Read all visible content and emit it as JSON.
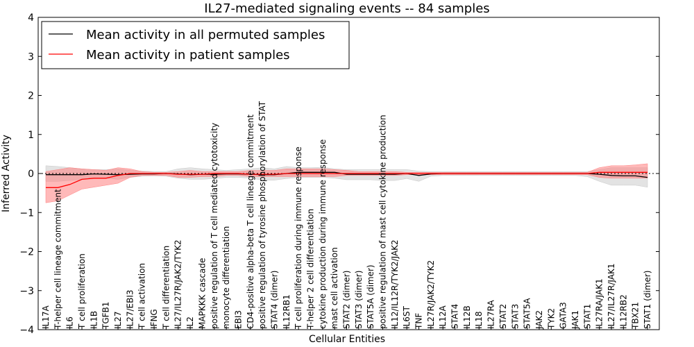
{
  "chart_data": {
    "type": "line",
    "title": "IL27-mediated signaling events -- 84 samples",
    "xlabel": "Cellular Entities",
    "ylabel": "Inferred Activity",
    "ylim": [
      -4,
      4
    ],
    "yticks": [
      -4,
      -3,
      -2,
      -1,
      0,
      1,
      2,
      3,
      4
    ],
    "legend_position": "top-left",
    "categories": [
      "IL17A",
      "T-helper cell lineage commitment",
      "IL6",
      "T cell proliferation",
      "IL1B",
      "TGFB1",
      "IL27",
      "IL27/EBI3",
      "T cell activation",
      "IFNG",
      "T cell differentiation",
      "IL27/IL27R/JAK2/TYK2",
      "IL2",
      "MAPKKK cascade",
      "positive regulation of T cell mediated cytotoxicity",
      "monocyte differentiation",
      "EBI3",
      "CD4-positive alpha-beta T cell lineage commitment",
      "positive regulation of tyrosine phosphorylation of STAT",
      "STAT4 (dimer)",
      "IL12RB1",
      "T cell proliferation during immune response",
      "T-helper 2 cell differentiation",
      "cytokine production during immune response",
      "mast cell activation",
      "STAT2 (dimer)",
      "STAT3 (dimer)",
      "STAT5A (dimer)",
      "positive regulation of mast cell cytokine production",
      "IL12/IL12R/TYK2/JAK2",
      "IL6ST",
      "TNF",
      "IL27R/JAK2/TYK2",
      "IL12A",
      "STAT4",
      "IL12B",
      "IL18",
      "IL27RA",
      "STAT2",
      "STAT3",
      "STAT5A",
      "JAK2",
      "TYK2",
      "GATA3",
      "JAK1",
      "STAT1",
      "IL27RA/JAK1",
      "IL27/IL27R/JAK1",
      "IL12RB2",
      "TBX21",
      "STAT1 (dimer)"
    ],
    "series": [
      {
        "name": "Mean activity in all permuted samples",
        "color": "#000000",
        "band_color": "#c8c8c8",
        "values": [
          -0.03,
          -0.03,
          -0.03,
          -0.03,
          -0.01,
          -0.02,
          -0.03,
          -0.02,
          -0.01,
          -0.01,
          0.0,
          -0.01,
          -0.03,
          -0.02,
          -0.02,
          -0.01,
          -0.01,
          -0.02,
          -0.03,
          -0.03,
          0.0,
          0.03,
          0.03,
          0.03,
          0.03,
          -0.02,
          -0.02,
          -0.02,
          -0.02,
          -0.02,
          0.0,
          -0.05,
          -0.01,
          0.0,
          0.0,
          0.0,
          0.0,
          0.0,
          0.0,
          0.0,
          0.0,
          0.0,
          0.0,
          0.0,
          0.0,
          0.0,
          -0.02,
          -0.05,
          -0.06,
          -0.06,
          -0.1
        ],
        "lower": [
          -0.2,
          -0.2,
          -0.18,
          -0.15,
          -0.12,
          -0.12,
          -0.15,
          -0.1,
          -0.07,
          -0.06,
          -0.07,
          -0.12,
          -0.15,
          -0.15,
          -0.13,
          -0.1,
          -0.1,
          -0.12,
          -0.17,
          -0.17,
          -0.13,
          -0.1,
          -0.1,
          -0.1,
          -0.12,
          -0.16,
          -0.16,
          -0.16,
          -0.18,
          -0.18,
          -0.13,
          -0.2,
          -0.07,
          -0.05,
          -0.05,
          -0.05,
          -0.05,
          -0.05,
          -0.05,
          -0.05,
          -0.05,
          -0.05,
          -0.05,
          -0.05,
          -0.05,
          -0.08,
          -0.2,
          -0.3,
          -0.3,
          -0.3,
          -0.35
        ],
        "upper": [
          0.2,
          0.18,
          0.15,
          0.12,
          0.1,
          0.1,
          0.12,
          0.08,
          0.06,
          0.05,
          0.05,
          0.12,
          0.15,
          0.12,
          0.1,
          0.08,
          0.1,
          0.12,
          0.15,
          0.12,
          0.18,
          0.15,
          0.15,
          0.16,
          0.12,
          0.1,
          0.1,
          0.1,
          0.1,
          0.1,
          0.1,
          0.06,
          0.05,
          0.05,
          0.05,
          0.05,
          0.05,
          0.05,
          0.05,
          0.05,
          0.05,
          0.05,
          0.05,
          0.05,
          0.05,
          0.05,
          0.1,
          0.15,
          0.15,
          0.15,
          0.15
        ]
      },
      {
        "name": "Mean activity in patient samples",
        "color": "#ff0000",
        "band_color": "#ff8080",
        "values": [
          -0.36,
          -0.36,
          -0.28,
          -0.15,
          -0.12,
          -0.12,
          -0.05,
          0.0,
          0.0,
          0.0,
          0.0,
          -0.02,
          -0.02,
          -0.02,
          0.0,
          0.0,
          0.0,
          -0.02,
          -0.02,
          -0.02,
          0.0,
          0.0,
          0.0,
          0.0,
          0.0,
          0.0,
          0.0,
          0.0,
          0.0,
          0.0,
          0.0,
          0.0,
          0.0,
          0.0,
          0.0,
          0.0,
          0.0,
          0.0,
          0.0,
          0.0,
          0.0,
          0.0,
          0.0,
          0.0,
          0.0,
          0.0,
          0.03,
          0.03,
          0.03,
          0.03,
          0.03
        ],
        "lower": [
          -0.75,
          -0.7,
          -0.55,
          -0.4,
          -0.35,
          -0.3,
          -0.25,
          -0.1,
          -0.05,
          -0.05,
          -0.05,
          -0.1,
          -0.1,
          -0.08,
          -0.08,
          -0.05,
          -0.05,
          -0.08,
          -0.08,
          -0.08,
          -0.08,
          -0.08,
          -0.08,
          -0.08,
          -0.08,
          -0.05,
          -0.05,
          -0.05,
          -0.05,
          -0.05,
          -0.03,
          -0.03,
          -0.03,
          -0.03,
          -0.03,
          -0.03,
          -0.03,
          -0.03,
          -0.03,
          -0.03,
          -0.03,
          -0.03,
          -0.03,
          -0.03,
          -0.03,
          -0.03,
          -0.1,
          -0.12,
          -0.12,
          -0.12,
          -0.12
        ],
        "upper": [
          0.05,
          0.1,
          0.15,
          0.12,
          0.1,
          0.08,
          0.15,
          0.12,
          0.05,
          0.03,
          0.03,
          0.05,
          0.08,
          0.05,
          0.05,
          0.05,
          0.05,
          0.08,
          0.08,
          0.08,
          0.12,
          0.12,
          0.12,
          0.12,
          0.1,
          0.08,
          0.05,
          0.05,
          0.05,
          0.05,
          0.03,
          0.03,
          0.03,
          0.03,
          0.03,
          0.03,
          0.03,
          0.03,
          0.03,
          0.03,
          0.03,
          0.03,
          0.03,
          0.03,
          0.03,
          0.03,
          0.15,
          0.2,
          0.2,
          0.22,
          0.25
        ]
      }
    ]
  }
}
